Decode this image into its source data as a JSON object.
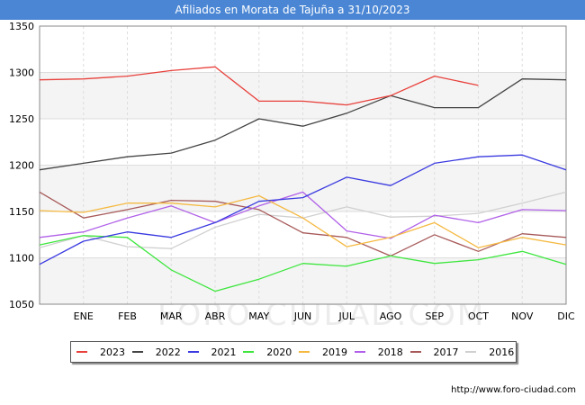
{
  "header": {
    "title": "Afiliados en Morata de Tajuña a 31/10/2023"
  },
  "watermark": "FORO-CIUDAD.COM",
  "source": "http://www.foro-ciudad.com",
  "chart_data": {
    "type": "line",
    "title": "Afiliados en Morata de Tajuña a 31/10/2023",
    "xlabel": "",
    "ylabel": "",
    "categories": [
      "",
      "ENE",
      "FEB",
      "MAR",
      "ABR",
      "MAY",
      "JUN",
      "JUL",
      "AGO",
      "SEP",
      "OCT",
      "NOV",
      "DIC"
    ],
    "ylim": [
      1050,
      1350
    ],
    "yticks": [
      1050,
      1100,
      1150,
      1200,
      1250,
      1300,
      1350
    ],
    "grid": true,
    "legend_position": "bottom",
    "series": [
      {
        "name": "2023",
        "color": "#e8413c",
        "values": [
          1292,
          1293,
          1296,
          1302,
          1306,
          1269,
          1269,
          1265,
          1275,
          1296,
          1286,
          null,
          null
        ]
      },
      {
        "name": "2022",
        "color": "#444444",
        "values": [
          1195,
          1202,
          1209,
          1213,
          1227,
          1250,
          1242,
          1256,
          1275,
          1262,
          1262,
          1293,
          1292
        ]
      },
      {
        "name": "2021",
        "color": "#3a3ae0",
        "values": [
          1093,
          1118,
          1128,
          1122,
          1138,
          1161,
          1165,
          1187,
          1178,
          1202,
          1209,
          1211,
          1195
        ]
      },
      {
        "name": "2020",
        "color": "#3ee63e",
        "values": [
          1114,
          1124,
          1122,
          1087,
          1064,
          1077,
          1094,
          1091,
          1102,
          1094,
          1098,
          1107,
          1093
        ]
      },
      {
        "name": "2019",
        "color": "#f5b942",
        "values": [
          1151,
          1149,
          1159,
          1159,
          1155,
          1167,
          1143,
          1112,
          1122,
          1138,
          1111,
          1122,
          1114
        ]
      },
      {
        "name": "2018",
        "color": "#b060e8",
        "values": [
          1122,
          1128,
          1143,
          1156,
          1138,
          1156,
          1171,
          1129,
          1121,
          1146,
          1138,
          1152,
          1151
        ]
      },
      {
        "name": "2017",
        "color": "#a85a5a",
        "values": [
          1171,
          1143,
          1152,
          1162,
          1161,
          1152,
          1127,
          1122,
          1102,
          1125,
          1107,
          1126,
          1122
        ]
      },
      {
        "name": "2016",
        "color": "#d0d0d0",
        "values": [
          1111,
          1124,
          1112,
          1110,
          1133,
          1147,
          1143,
          1155,
          1144,
          1145,
          1148,
          1159,
          1171
        ]
      }
    ]
  }
}
